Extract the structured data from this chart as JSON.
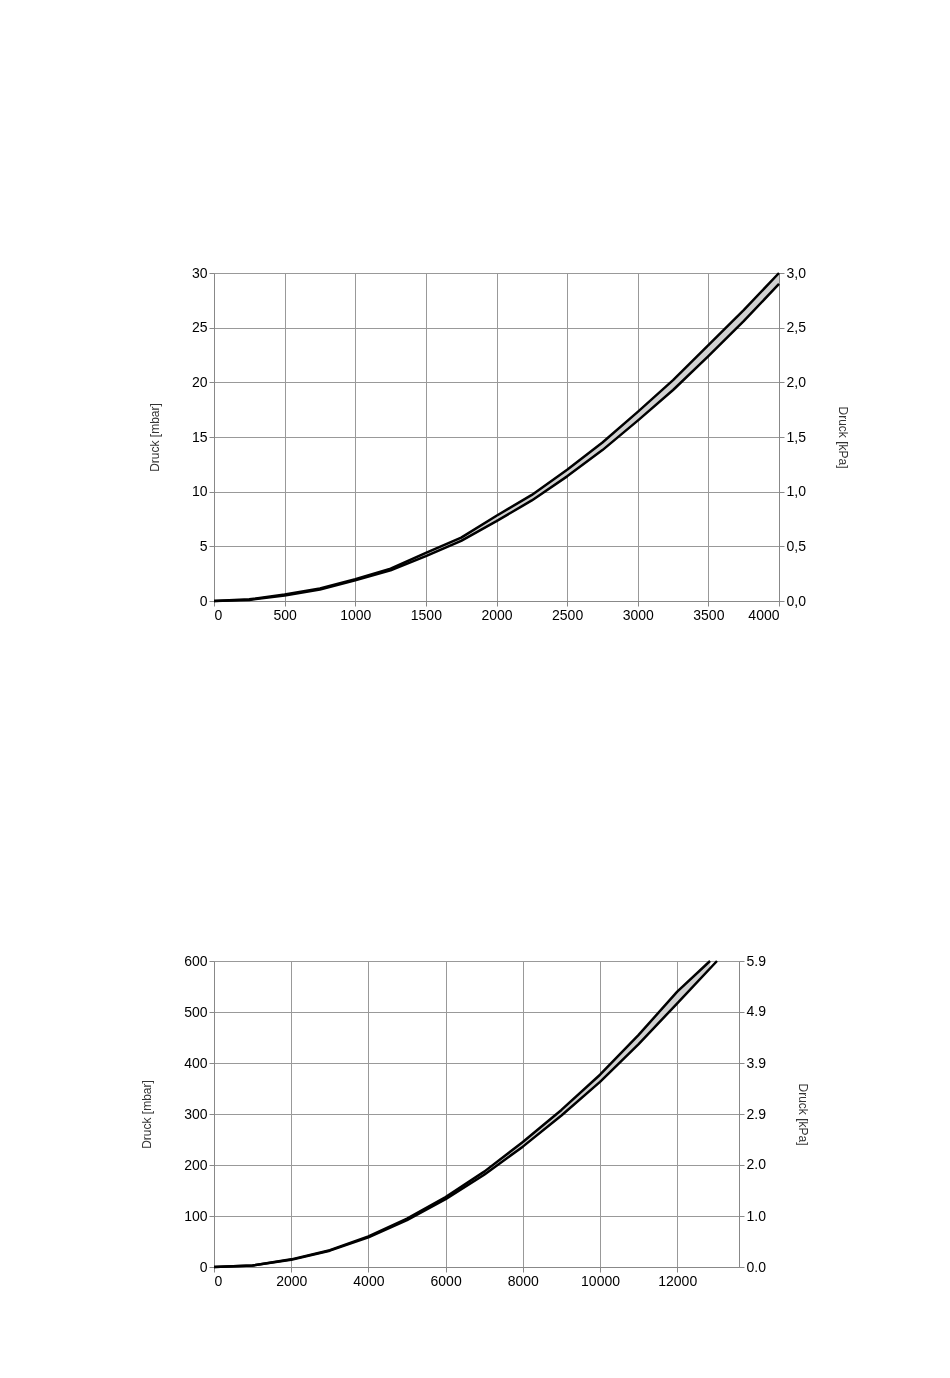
{
  "chart_data": [
    {
      "type": "line",
      "ylabel": "Druck [mbar]",
      "y2label": "Druck [kPa]",
      "xlim": [
        0,
        4000
      ],
      "xticks": [
        0,
        500,
        1000,
        1500,
        2000,
        2500,
        3000,
        3500,
        4000
      ],
      "ylim": [
        0,
        30
      ],
      "yticks": [
        0,
        5,
        10,
        15,
        20,
        25,
        30
      ],
      "y2lim": [
        0,
        3
      ],
      "y2ticks": [
        {
          "value": 0,
          "label": "0,0"
        },
        {
          "value": 0.5,
          "label": "0,5"
        },
        {
          "value": 1,
          "label": "1,0"
        },
        {
          "value": 1.5,
          "label": "1,5"
        },
        {
          "value": 2,
          "label": "2,0"
        },
        {
          "value": 2.5,
          "label": "2,5"
        },
        {
          "value": 3,
          "label": "3,0"
        }
      ],
      "grid": true,
      "legend": false,
      "marker": "none",
      "line_style": "solid",
      "series": [
        {
          "color": "#000000",
          "x": [
            0,
            250,
            500,
            750,
            1000,
            1250,
            1500,
            1750,
            2000,
            2250,
            2500,
            2750,
            3000,
            3250,
            3500,
            3750,
            4000
          ],
          "values": [
            0,
            0.15,
            0.6,
            1.15,
            2.0,
            2.95,
            4.4,
            5.8,
            7.8,
            9.7,
            12.0,
            14.5,
            17.3,
            20.2,
            23.4,
            26.6,
            30
          ],
          "upper": [
            0,
            0.15,
            0.6,
            1.15,
            2.0,
            2.95,
            4.4,
            5.8,
            7.8,
            9.7,
            12.0,
            14.5,
            17.3,
            20.2,
            23.4,
            26.6,
            30
          ],
          "lower": [
            0,
            0.1,
            0.5,
            1.05,
            1.9,
            2.8,
            4.1,
            5.5,
            7.3,
            9.2,
            11.4,
            13.8,
            16.5,
            19.3,
            22.4,
            25.6,
            29.0
          ]
        },
        {
          "color": "#000000",
          "x": [
            0,
            250,
            500,
            750,
            1000,
            1250,
            1500,
            1750,
            2000,
            2250,
            2500,
            2750,
            3000,
            3250,
            3500,
            3750,
            4000
          ],
          "values": [
            0,
            0.1,
            0.5,
            1.05,
            1.9,
            2.8,
            4.1,
            5.5,
            7.3,
            9.2,
            11.4,
            13.8,
            16.5,
            19.3,
            22.4,
            25.6,
            29.0
          ]
        }
      ]
    },
    {
      "type": "line",
      "ylabel": "Druck [mbar]",
      "y2label": "Druck [kPa]",
      "xlim": [
        0,
        13600
      ],
      "xticks": [
        0,
        2000,
        4000,
        6000,
        8000,
        10000,
        12000
      ],
      "ylim": [
        0,
        600
      ],
      "yticks": [
        0,
        100,
        200,
        300,
        400,
        500,
        600
      ],
      "y2lim": [
        0,
        5.9
      ],
      "y2ticks": [
        {
          "value": 0,
          "label": "0.0"
        },
        {
          "value": 0.983,
          "label": "1.0"
        },
        {
          "value": 1.967,
          "label": "2.0"
        },
        {
          "value": 2.95,
          "label": "2.9"
        },
        {
          "value": 3.933,
          "label": "3.9"
        },
        {
          "value": 4.917,
          "label": "4.9"
        },
        {
          "value": 5.9,
          "label": "5.9"
        }
      ],
      "grid": true,
      "legend": false,
      "marker": "none",
      "line_style": "solid",
      "series": [
        {
          "color": "#000000",
          "x": [
            0,
            1000,
            2000,
            3000,
            4000,
            5000,
            6000,
            7000,
            8000,
            9000,
            10000,
            11000,
            12000,
            12850
          ],
          "values": [
            0,
            3,
            15,
            33,
            60,
            95,
            137,
            187,
            245,
            308,
            377,
            455,
            540,
            600
          ],
          "upper": [
            0,
            3,
            15,
            33,
            60,
            95,
            137,
            187,
            245,
            308,
            377,
            455,
            540,
            600
          ],
          "lower": [
            0,
            3,
            14,
            32,
            58,
            92,
            133,
            181,
            236,
            297,
            363,
            437,
            517,
            586
          ]
        },
        {
          "color": "#000000",
          "x": [
            0,
            1000,
            2000,
            3000,
            4000,
            5000,
            6000,
            7000,
            8000,
            9000,
            10000,
            11000,
            12000,
            13030
          ],
          "values": [
            0,
            3,
            14,
            32,
            58,
            92,
            133,
            181,
            236,
            297,
            363,
            437,
            517,
            600
          ]
        }
      ]
    }
  ]
}
